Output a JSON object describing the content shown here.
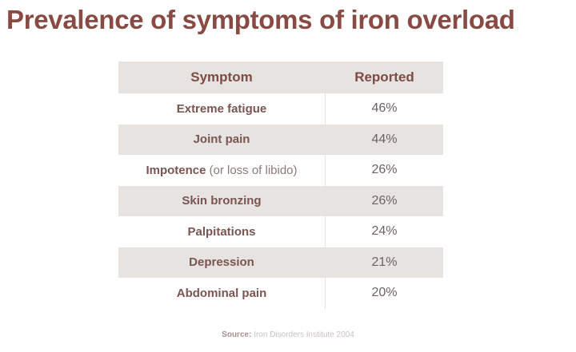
{
  "title": "Prevalence of symptoms of iron overload",
  "table": {
    "headers": [
      "Symptom",
      "Reported"
    ],
    "rows": [
      {
        "symptom": "Extreme fatigue",
        "note": "",
        "reported": "46%"
      },
      {
        "symptom": "Joint pain",
        "note": "",
        "reported": "44%"
      },
      {
        "symptom": "Impotence",
        "note": "(or loss of libido)",
        "reported": "26%"
      },
      {
        "symptom": "Skin bronzing",
        "note": "",
        "reported": "26%"
      },
      {
        "symptom": "Palpitations",
        "note": "",
        "reported": "24%"
      },
      {
        "symptom": "Depression",
        "note": "",
        "reported": "21%"
      },
      {
        "symptom": "Abdominal pain",
        "note": "",
        "reported": "20%"
      }
    ]
  },
  "source": {
    "label": "Source:",
    "text": "Iron Disorders Institute 2004"
  },
  "colors": {
    "title": "#8a4a44",
    "header_bg": "#e6e3e1",
    "shaded_row": "#e6e3e1"
  }
}
